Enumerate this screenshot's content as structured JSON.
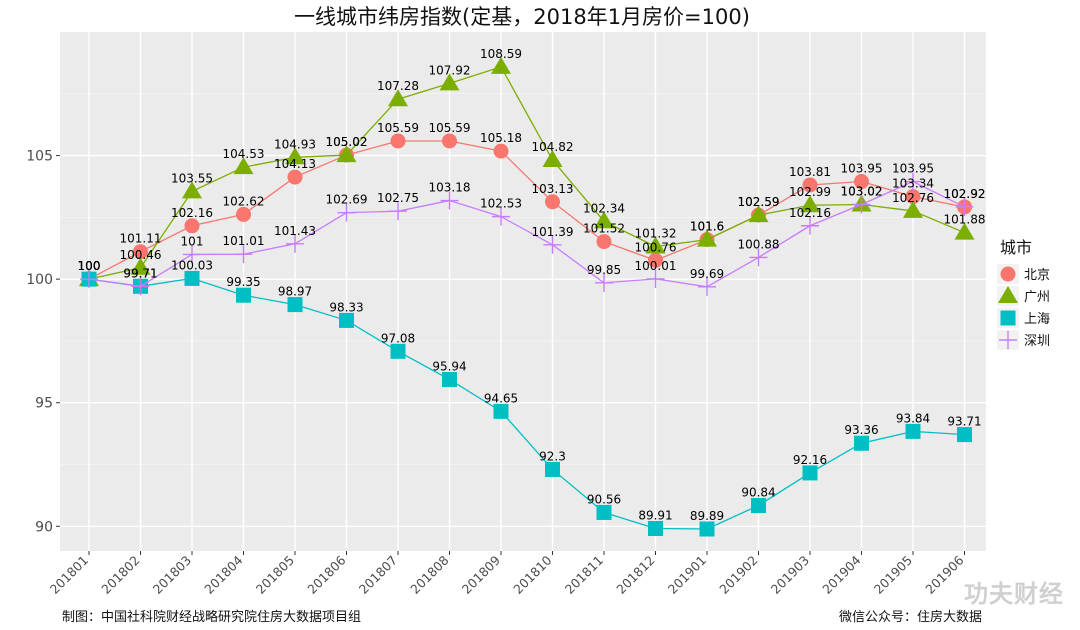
{
  "footer": {
    "left": "制图：中国社科院财经战略研究院住房大数据项目组",
    "right": "微信公众号：住房大数据"
  },
  "watermark": "功夫财经",
  "chart_data": {
    "type": "line",
    "title": "一线城市纬房指数(定基，2018年1月房价=100)",
    "xlabel": "",
    "ylabel": "",
    "ylim": [
      89,
      110
    ],
    "yticks": [
      90,
      95,
      100,
      105
    ],
    "grid": true,
    "legend_title": "城市",
    "legend_position": "right",
    "categories": [
      "201801",
      "201802",
      "201803",
      "201804",
      "201805",
      "201806",
      "201807",
      "201808",
      "201809",
      "201810",
      "201811",
      "201812",
      "201901",
      "201902",
      "201903",
      "201904",
      "201905",
      "201906"
    ],
    "series": [
      {
        "name": "北京",
        "marker": "circle",
        "color": "#F8766D",
        "values": [
          100,
          101.11,
          102.16,
          102.62,
          104.13,
          105.02,
          105.59,
          105.59,
          105.18,
          103.13,
          101.52,
          100.76,
          101.6,
          102.59,
          103.81,
          103.95,
          103.34,
          102.92
        ]
      },
      {
        "name": "广州",
        "marker": "triangle",
        "color": "#7CAE00",
        "values": [
          100,
          100.46,
          103.55,
          104.53,
          104.93,
          105.02,
          107.28,
          107.92,
          108.59,
          104.82,
          102.34,
          101.32,
          101.6,
          102.59,
          102.99,
          103.02,
          102.76,
          101.88
        ]
      },
      {
        "name": "上海",
        "marker": "square",
        "color": "#00BFC4",
        "values": [
          100,
          99.71,
          100.03,
          99.35,
          98.97,
          98.33,
          97.08,
          95.94,
          94.65,
          92.3,
          90.56,
          89.91,
          89.89,
          90.84,
          92.16,
          93.36,
          93.84,
          93.71
        ]
      },
      {
        "name": "深圳",
        "marker": "plus",
        "color": "#C77CFF",
        "values": [
          100,
          99.71,
          101,
          101.01,
          101.43,
          102.69,
          102.75,
          103.18,
          102.53,
          101.39,
          99.85,
          100.01,
          99.69,
          100.88,
          102.16,
          103.02,
          103.95,
          102.92
        ]
      }
    ]
  }
}
